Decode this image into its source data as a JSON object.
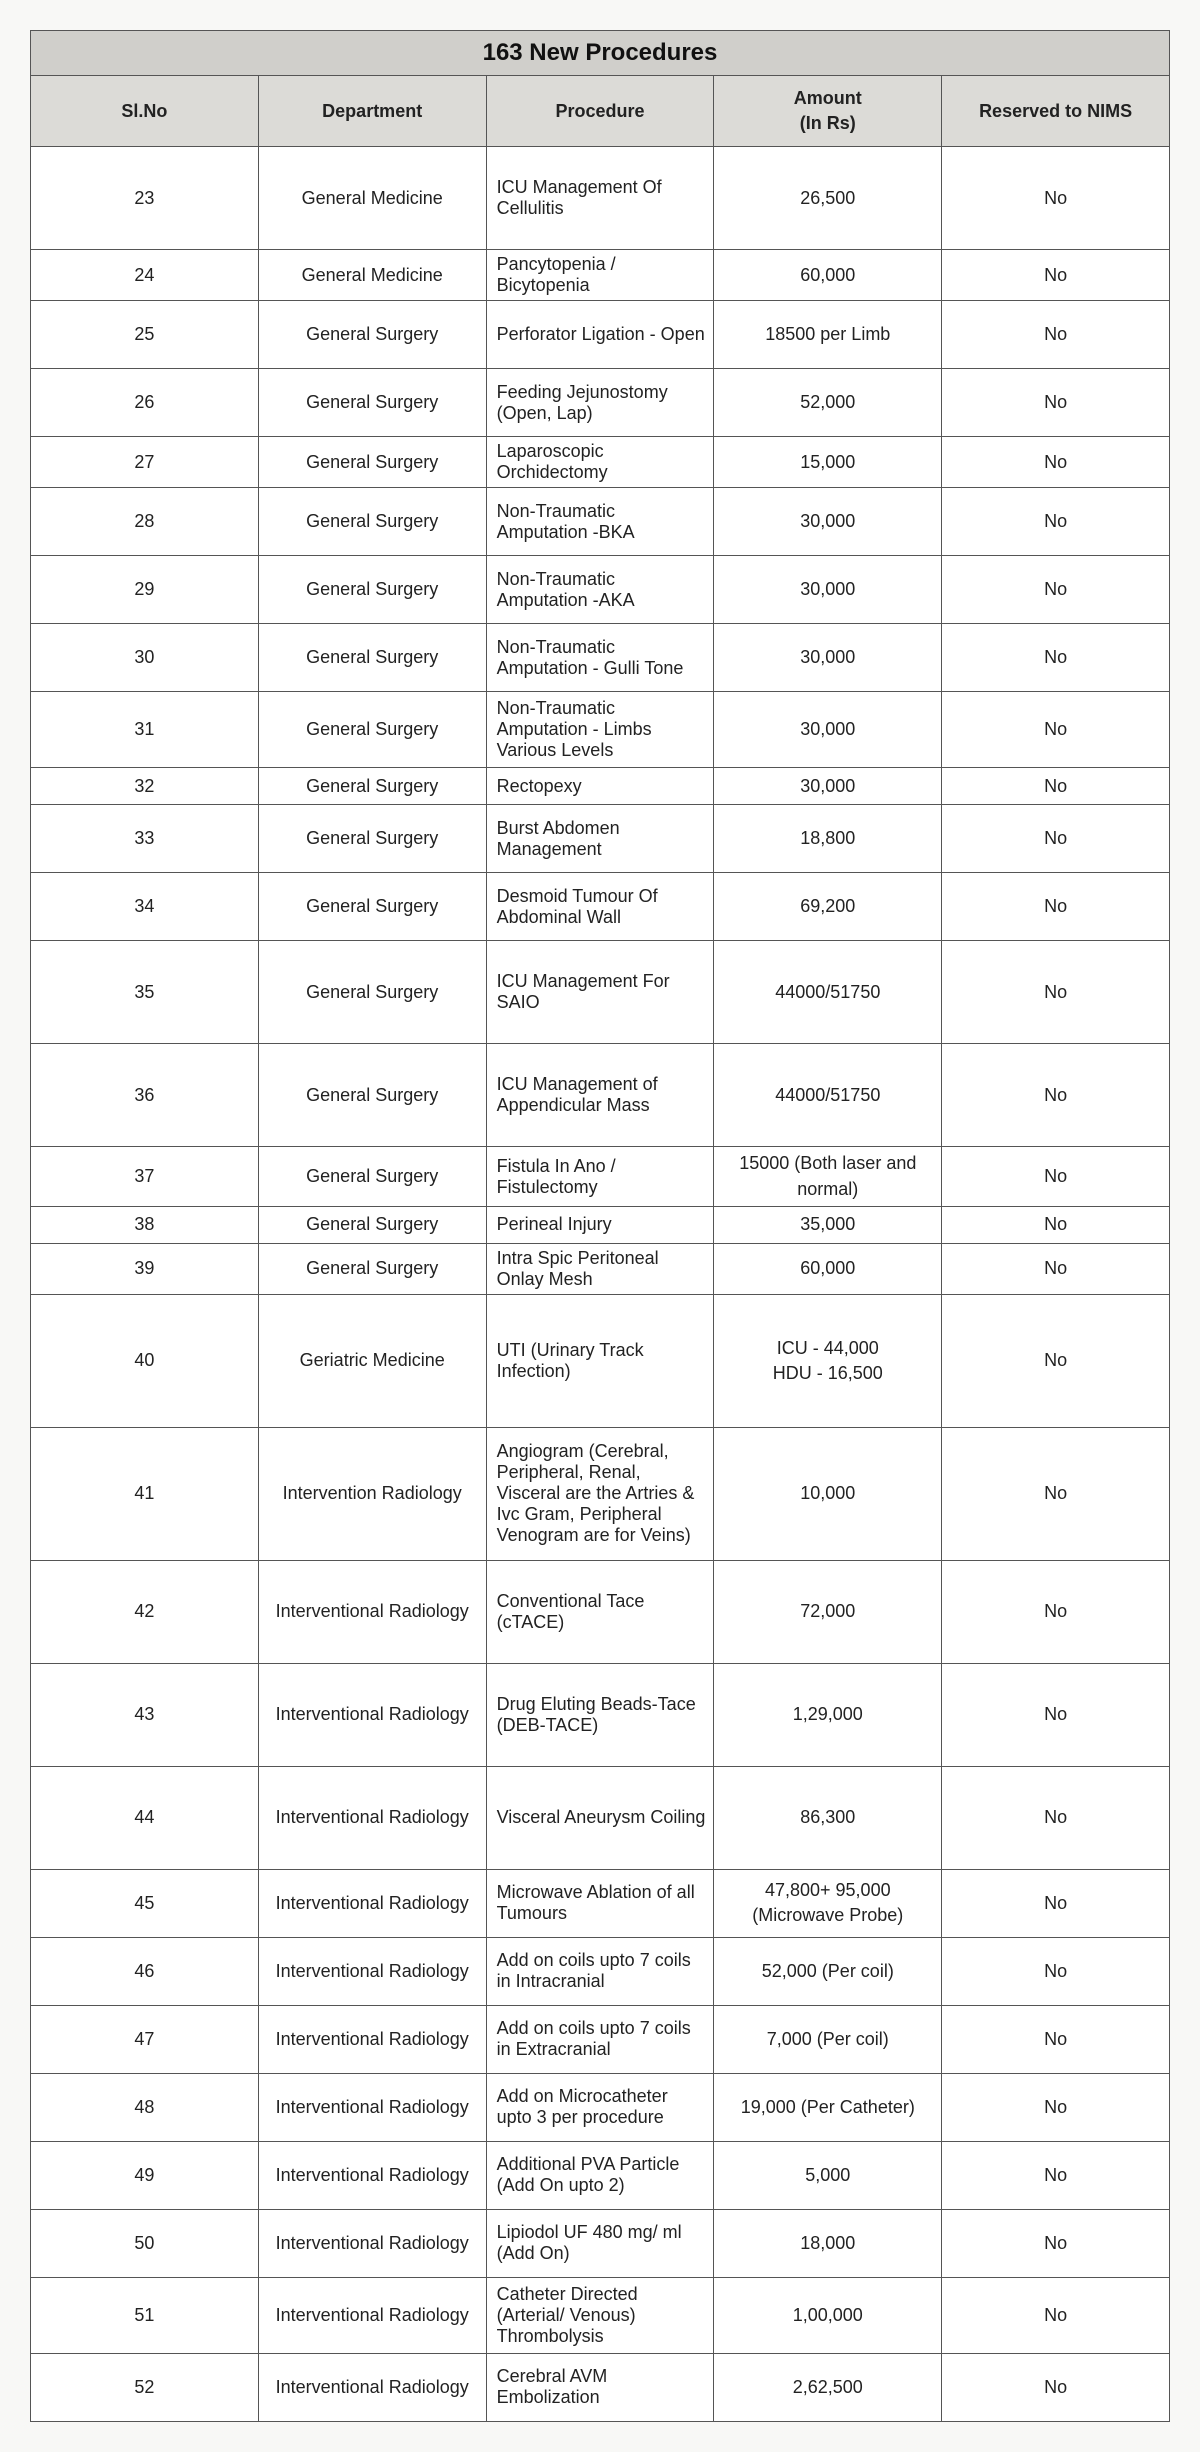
{
  "title": "163 New Procedures",
  "columns": [
    "Sl.No",
    "Department",
    "Procedure",
    "Amount\n(In Rs)",
    "Reserved to NIMS"
  ],
  "rows": [
    {
      "sl": "23",
      "dept": "General Medicine",
      "proc": "ICU Management Of Cellulitis",
      "amt": "26,500",
      "res": "No",
      "h": "tall"
    },
    {
      "sl": "24",
      "dept": "General Medicine",
      "proc": "Pancytopenia / Bicytopenia",
      "amt": "60,000",
      "res": "No",
      "h": "short"
    },
    {
      "sl": "25",
      "dept": "General Surgery",
      "proc": "Perforator Ligation - Open",
      "amt": "18500 per Limb",
      "res": "No",
      "h": "med"
    },
    {
      "sl": "26",
      "dept": "General Surgery",
      "proc": "Feeding Jejunostomy (Open, Lap)",
      "amt": "52,000",
      "res": "No",
      "h": "med"
    },
    {
      "sl": "27",
      "dept": "General Surgery",
      "proc": "Laparoscopic Orchidectomy",
      "amt": "15,000",
      "res": "No",
      "h": "short"
    },
    {
      "sl": "28",
      "dept": "General Surgery",
      "proc": "Non-Traumatic Amputation -BKA",
      "amt": "30,000",
      "res": "No",
      "h": "med"
    },
    {
      "sl": "29",
      "dept": "General Surgery",
      "proc": "Non-Traumatic Amputation -AKA",
      "amt": "30,000",
      "res": "No",
      "h": "med"
    },
    {
      "sl": "30",
      "dept": "General Surgery",
      "proc": "Non-Traumatic Amputation - Gulli Tone",
      "amt": "30,000",
      "res": "No",
      "h": "med"
    },
    {
      "sl": "31",
      "dept": "General Surgery",
      "proc": "Non-Traumatic Amputation - Limbs Various Levels",
      "amt": "30,000",
      "res": "No",
      "h": "med"
    },
    {
      "sl": "32",
      "dept": "General Surgery",
      "proc": "Rectopexy",
      "amt": "30,000",
      "res": "No",
      "h": "short"
    },
    {
      "sl": "33",
      "dept": "General Surgery",
      "proc": "Burst Abdomen Management",
      "amt": "18,800",
      "res": "No",
      "h": "med"
    },
    {
      "sl": "34",
      "dept": "General Surgery",
      "proc": "Desmoid Tumour Of Abdominal Wall",
      "amt": "69,200",
      "res": "No",
      "h": "med"
    },
    {
      "sl": "35",
      "dept": "General Surgery",
      "proc": "ICU Management For SAIO",
      "amt": "44000/51750",
      "res": "No",
      "h": "tall"
    },
    {
      "sl": "36",
      "dept": "General Surgery",
      "proc": "ICU Management of Appendicular Mass",
      "amt": "44000/51750",
      "res": "No",
      "h": "tall"
    },
    {
      "sl": "37",
      "dept": "General Surgery",
      "proc": "Fistula In Ano / Fistulectomy",
      "amt": "15000 (Both laser and normal)",
      "res": "No",
      "h": "short"
    },
    {
      "sl": "38",
      "dept": "General Surgery",
      "proc": "Perineal Injury",
      "amt": "35,000",
      "res": "No",
      "h": "short"
    },
    {
      "sl": "39",
      "dept": "General Surgery",
      "proc": "Intra Spic Peritoneal Onlay Mesh",
      "amt": "60,000",
      "res": "No",
      "h": "short"
    },
    {
      "sl": "40",
      "dept": "Geriatric Medicine",
      "proc": "UTI (Urinary Track Infection)",
      "amt": "ICU - 44,000\nHDU - 16,500",
      "res": "No",
      "h": "xtall"
    },
    {
      "sl": "41",
      "dept": "Intervention Radiology",
      "proc": "Angiogram (Cerebral, Peripheral, Renal, Visceral are the Artries & Ivc Gram, Peripheral Venogram are for Veins)",
      "amt": "10,000",
      "res": "No",
      "h": "xtall"
    },
    {
      "sl": "42",
      "dept": "Interventional Radiology",
      "proc": "Conventional Tace (cTACE)",
      "amt": "72,000",
      "res": "No",
      "h": "tall"
    },
    {
      "sl": "43",
      "dept": "Interventional Radiology",
      "proc": "Drug Eluting Beads-Tace (DEB-TACE)",
      "amt": "1,29,000",
      "res": "No",
      "h": "tall"
    },
    {
      "sl": "44",
      "dept": "Interventional Radiology",
      "proc": "Visceral Aneurysm Coiling",
      "amt": "86,300",
      "res": "No",
      "h": "tall"
    },
    {
      "sl": "45",
      "dept": "Interventional Radiology",
      "proc": "Microwave Ablation of all Tumours",
      "amt": "47,800+ 95,000 (Microwave Probe)",
      "res": "No",
      "h": "med"
    },
    {
      "sl": "46",
      "dept": "Interventional Radiology",
      "proc": "Add on coils upto 7 coils in Intracranial",
      "amt": "52,000 (Per coil)",
      "res": "No",
      "h": "med"
    },
    {
      "sl": "47",
      "dept": "Interventional Radiology",
      "proc": "Add on coils upto 7 coils in Extracranial",
      "amt": "7,000 (Per coil)",
      "res": "No",
      "h": "med"
    },
    {
      "sl": "48",
      "dept": "Interventional Radiology",
      "proc": "Add on Microcatheter upto 3 per procedure",
      "amt": "19,000 (Per Catheter)",
      "res": "No",
      "h": "med"
    },
    {
      "sl": "49",
      "dept": "Interventional Radiology",
      "proc": "Additional PVA Particle (Add On upto 2)",
      "amt": "5,000",
      "res": "No",
      "h": "med"
    },
    {
      "sl": "50",
      "dept": "Interventional Radiology",
      "proc": "Lipiodol UF 480 mg/ ml (Add On)",
      "amt": "18,000",
      "res": "No",
      "h": "med"
    },
    {
      "sl": "51",
      "dept": "Interventional Radiology",
      "proc": "Catheter Directed (Arterial/ Venous) Thrombolysis",
      "amt": "1,00,000",
      "res": "No",
      "h": "med"
    },
    {
      "sl": "52",
      "dept": "Interventional Radiology",
      "proc": "Cerebral AVM Embolization",
      "amt": "2,62,500",
      "res": "No",
      "h": "med"
    }
  ]
}
